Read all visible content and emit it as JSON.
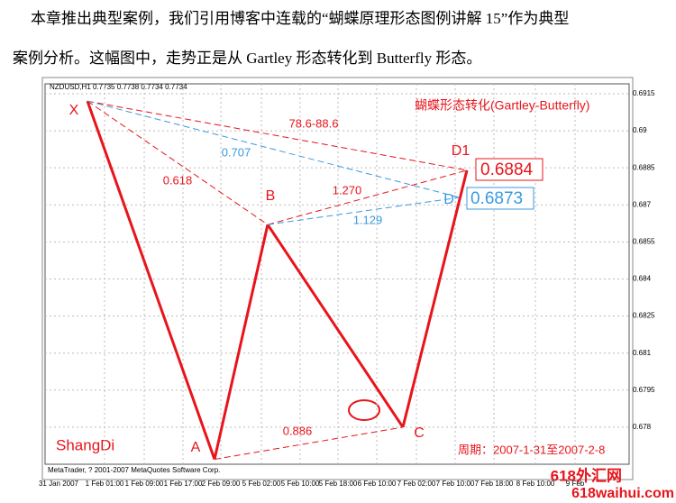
{
  "paragraph": [
    "本章推出典型案例，我们引用博客中连载的“蝴蝶原理形态图例讲解 15”作为典型",
    "案例分析。这幅图中，走势正是从 Gartley 形态转化到 Butterfly 形态。"
  ],
  "chart_data": {
    "type": "pattern",
    "header": "NZDUSD,H1  0.7735 0.7738 0.7734 0.7734",
    "title": "蝴蝶形态转化(Gartley-Butterfly)",
    "author": "ShangDi",
    "period": "周期：2007-1-31至2007-2-8",
    "copyright": "MetaTrader, ? 2001-2007 MetaQuotes Software Corp.",
    "categories": [
      "31 Jan 2007",
      "1 Feb 01:00",
      "1 Feb 09:00",
      "1 Feb 17:00",
      "2 Feb 09:00",
      "5 Feb 02:00",
      "5 Feb 10:00",
      "5 Feb 18:00",
      "6 Feb 10:00",
      "7 Feb 02:00",
      "7 Feb 10:00",
      "7 Feb 18:00",
      "8 Feb 10:00",
      "9 Feb"
    ],
    "ylim": [
      0.6765,
      0.6919
    ],
    "yticks": [
      0.6915,
      0.69,
      0.6885,
      0.687,
      0.6855,
      0.684,
      0.6825,
      0.681,
      0.6795,
      0.678
    ],
    "grid": true,
    "points": [
      {
        "name": "X",
        "value": 0.6912
      },
      {
        "name": "A",
        "value": 0.6767
      },
      {
        "name": "B",
        "value": 0.6862
      },
      {
        "name": "C",
        "value": 0.678
      },
      {
        "name": "D1",
        "value": 0.6884
      },
      {
        "name": "D",
        "value": 0.6873
      }
    ],
    "ratios": [
      "78.6-88.6",
      "0.707",
      "0.618",
      "1.270",
      "1.129",
      "0.886"
    ],
    "color": "#e8141b",
    "alt_color": "#3a9ae0"
  },
  "watermark": [
    "618外汇网",
    "618waihui.com"
  ]
}
